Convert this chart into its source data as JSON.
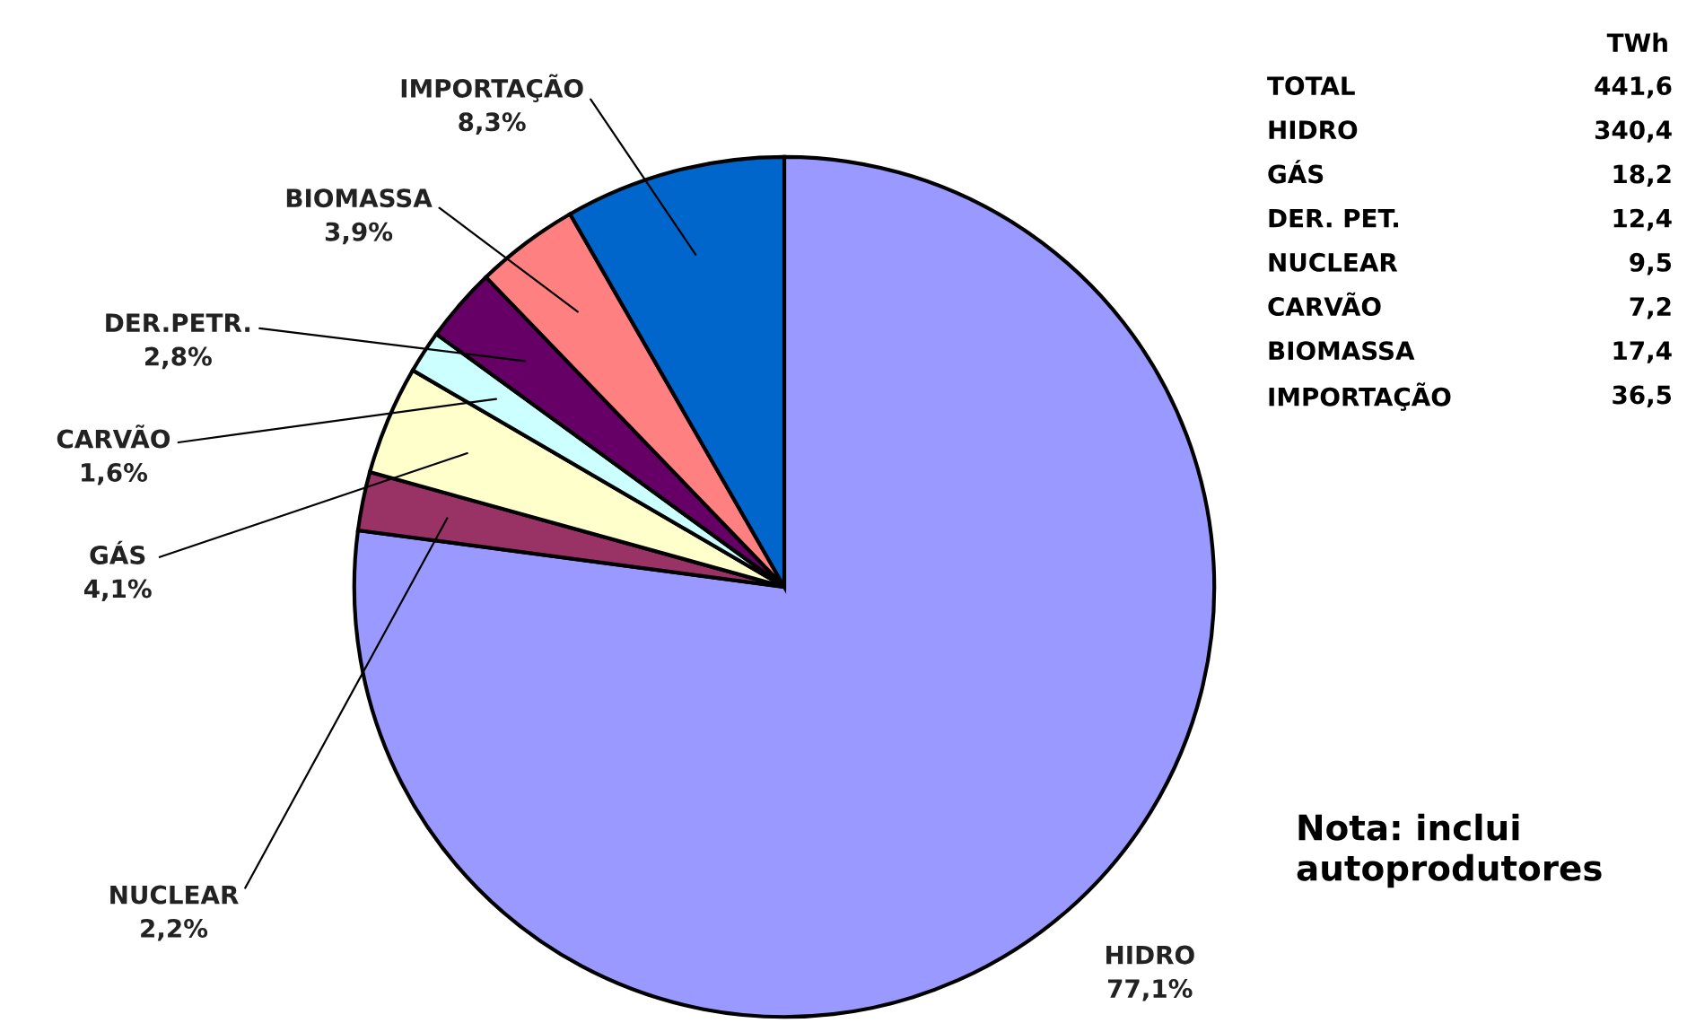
{
  "chart_data": {
    "type": "pie",
    "categories": [
      "HIDRO",
      "NUCLEAR",
      "GÁS",
      "CARVÃO",
      "DER.PETR.",
      "BIOMASSA",
      "IMPORTAÇÃO"
    ],
    "values": [
      77.1,
      2.2,
      4.1,
      1.6,
      2.8,
      3.9,
      8.3
    ],
    "value_labels": [
      "77,1%",
      "2,2%",
      "4,1%",
      "1,6%",
      "2,8%",
      "3,9%",
      "8,3%"
    ],
    "colors": [
      "#9999ff",
      "#993366",
      "#ffffcc",
      "#ccffff",
      "#660066",
      "#ff8080",
      "#0066cc"
    ],
    "annotations": [
      "TWh",
      "TOTAL",
      "441,6",
      "HIDRO",
      "340,4",
      "GÁS",
      "18,2",
      "DER. PET.",
      "12,4",
      "NUCLEAR",
      "9,5",
      "CARVÃO",
      "7,2",
      "BIOMASSA",
      "17,4",
      "IMPORTAÇÃO",
      "36,5",
      "Nota: inclui\nautoprodutores"
    ]
  }
}
